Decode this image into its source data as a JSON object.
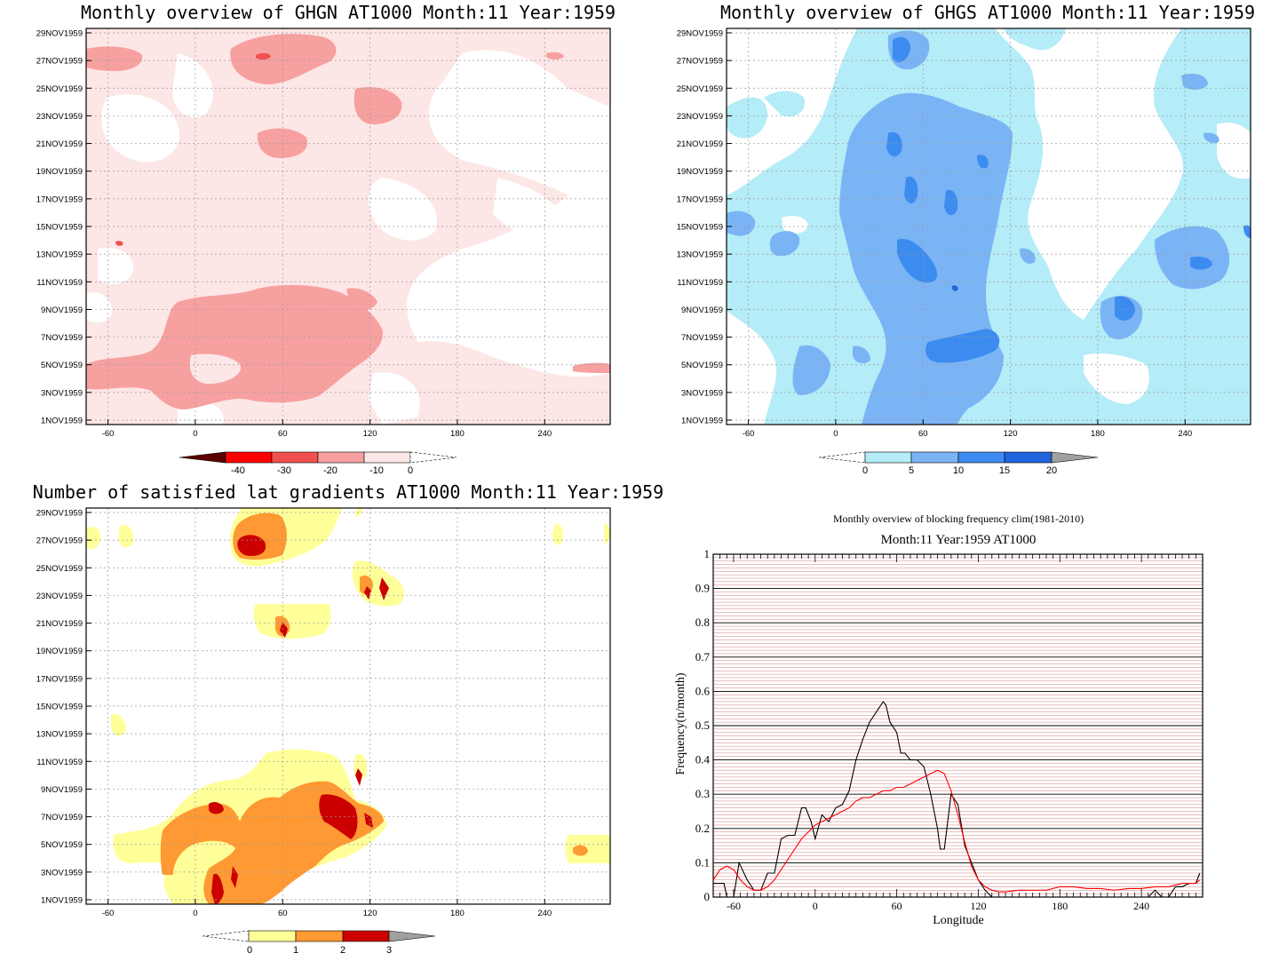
{
  "dates": [
    "1NOV1959",
    "3NOV1959",
    "5NOV1959",
    "7NOV1959",
    "9NOV1959",
    "11NOV1959",
    "13NOV1959",
    "15NOV1959",
    "17NOV1959",
    "19NOV1959",
    "21NOV1959",
    "23NOV1959",
    "25NOV1959",
    "27NOV1959",
    "29NOV1959"
  ],
  "lon_ticks": [
    "-60",
    "0",
    "60",
    "120",
    "180",
    "240"
  ],
  "colors": {
    "ghgn": [
      "#5a0000",
      "#ff0000",
      "#f25050",
      "#f7a0a0",
      "#fde6e6"
    ],
    "ghgs": [
      "#b4ecf7",
      "#7ab4f5",
      "#3c8cf0",
      "#1e64dc",
      "#a0a0a0"
    ],
    "grad": [
      "#ffff99",
      "#ff9933",
      "#cc0000",
      "#a0a0a0"
    ]
  },
  "chart_data": [
    {
      "type": "heatmap",
      "title": "Monthly overview of GHGN AT1000 Month:11 Year:1959",
      "x_range": [
        -75,
        285
      ],
      "colorbar": [
        "-40",
        "-30",
        "-20",
        "-10",
        "0"
      ]
    },
    {
      "type": "heatmap",
      "title": "Monthly overview of GHGS AT1000 Month:11 Year:1959",
      "x_range": [
        -75,
        285
      ],
      "colorbar": [
        "0",
        "5",
        "10",
        "15",
        "20"
      ]
    },
    {
      "type": "heatmap",
      "title": "Number of satisfied lat gradients AT1000 Month:11 Year:1959",
      "x_range": [
        -75,
        285
      ],
      "colorbar": [
        "0",
        "1",
        "2",
        "3"
      ]
    },
    {
      "type": "line",
      "title": "Monthly overview of blocking frequency clim(1981-2010)",
      "subtitle": "Month:11 Year:1959  AT1000",
      "xlabel": "Longitude",
      "ylabel": "Frequency(n/month)",
      "xlim": [
        -75,
        285
      ],
      "ylim": [
        0,
        1
      ],
      "y_ticks": [
        "0",
        "0.1",
        "0.2",
        "0.3",
        "0.4",
        "0.5",
        "0.6",
        "0.7",
        "0.8",
        "0.9",
        "1"
      ],
      "x_ticks": [
        "-60",
        "0",
        "60",
        "120",
        "180",
        "240"
      ],
      "series": [
        {
          "color": "#000000",
          "x": [
            -75,
            -67,
            -65,
            -60,
            -56,
            -50,
            -45,
            -40,
            -35,
            -30,
            -25,
            -20,
            -15,
            -10,
            -7,
            -3,
            0,
            5,
            10,
            15,
            20,
            25,
            30,
            35,
            40,
            45,
            50,
            52,
            55,
            60,
            63,
            66,
            70,
            75,
            80,
            85,
            90,
            92,
            95,
            100,
            105,
            110,
            115,
            120,
            125,
            130,
            135,
            140,
            150,
            160,
            170,
            180,
            190,
            200,
            210,
            220,
            230,
            240,
            245,
            250,
            255,
            260,
            265,
            270,
            275,
            280,
            283
          ],
          "y": [
            0.04,
            0.04,
            0.0,
            0.0,
            0.1,
            0.05,
            0.02,
            0.02,
            0.07,
            0.07,
            0.17,
            0.18,
            0.18,
            0.26,
            0.26,
            0.22,
            0.17,
            0.24,
            0.22,
            0.26,
            0.27,
            0.31,
            0.4,
            0.46,
            0.51,
            0.54,
            0.57,
            0.56,
            0.51,
            0.48,
            0.42,
            0.42,
            0.4,
            0.4,
            0.38,
            0.3,
            0.2,
            0.14,
            0.14,
            0.3,
            0.27,
            0.15,
            0.1,
            0.05,
            0.02,
            0.0,
            0.0,
            0.0,
            0.0,
            0.0,
            0.0,
            0.0,
            0.0,
            0.0,
            0.0,
            0.0,
            0.0,
            0.0,
            0.0,
            0.02,
            0.0,
            0.0,
            0.03,
            0.03,
            0.04,
            0.04,
            0.07
          ]
        },
        {
          "color": "#ff0000",
          "x": [
            -75,
            -70,
            -65,
            -60,
            -55,
            -50,
            -45,
            -40,
            -35,
            -30,
            -25,
            -20,
            -15,
            -10,
            -5,
            0,
            5,
            10,
            15,
            20,
            25,
            30,
            35,
            40,
            45,
            50,
            55,
            60,
            65,
            70,
            75,
            80,
            85,
            90,
            95,
            100,
            105,
            110,
            115,
            120,
            125,
            130,
            135,
            140,
            150,
            160,
            170,
            180,
            190,
            200,
            210,
            220,
            230,
            240,
            250,
            260,
            270,
            280,
            283
          ],
          "y": [
            0.05,
            0.08,
            0.09,
            0.08,
            0.05,
            0.03,
            0.02,
            0.02,
            0.03,
            0.05,
            0.08,
            0.11,
            0.14,
            0.17,
            0.19,
            0.21,
            0.22,
            0.23,
            0.24,
            0.25,
            0.26,
            0.28,
            0.29,
            0.29,
            0.3,
            0.31,
            0.31,
            0.32,
            0.32,
            0.33,
            0.34,
            0.35,
            0.36,
            0.37,
            0.36,
            0.31,
            0.24,
            0.16,
            0.09,
            0.05,
            0.03,
            0.02,
            0.015,
            0.015,
            0.02,
            0.02,
            0.02,
            0.03,
            0.03,
            0.025,
            0.025,
            0.02,
            0.025,
            0.025,
            0.03,
            0.03,
            0.04,
            0.04,
            0.05
          ]
        }
      ]
    }
  ]
}
